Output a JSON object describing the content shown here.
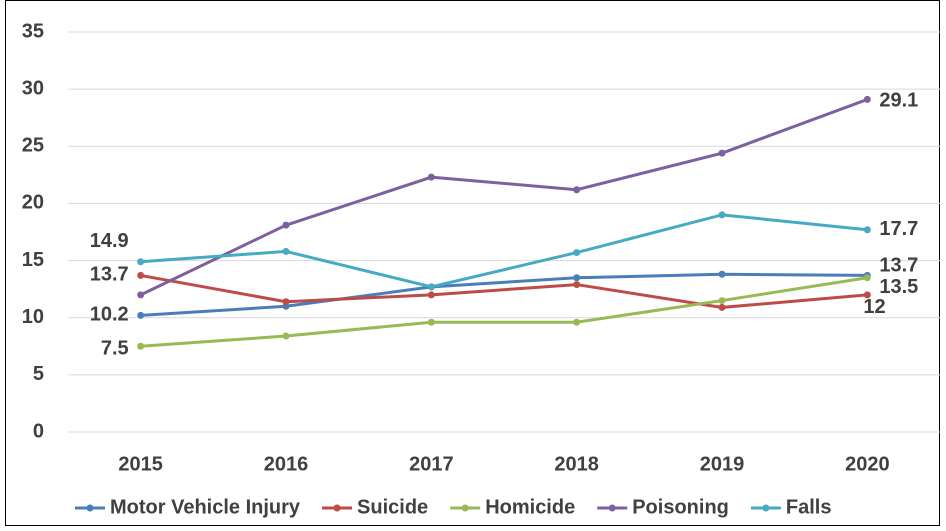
{
  "chart_data": {
    "type": "line",
    "categories": [
      "2015",
      "2016",
      "2017",
      "2018",
      "2019",
      "2020"
    ],
    "ylim": [
      0,
      35
    ],
    "yticks": [
      0,
      5,
      10,
      15,
      20,
      25,
      30,
      35
    ],
    "grid": true,
    "legend": "bottom",
    "series": [
      {
        "name": "Motor Vehicle Injury",
        "color": "#4a7ebb",
        "values": [
          10.2,
          11.0,
          12.7,
          13.5,
          13.8,
          13.7
        ],
        "value_labels": [
          "10.2",
          null,
          null,
          null,
          null,
          "13.7"
        ]
      },
      {
        "name": "Suicide",
        "color": "#be4b48",
        "values": [
          13.7,
          11.4,
          12.0,
          12.9,
          10.9,
          12
        ],
        "value_labels": [
          "13.7",
          null,
          null,
          null,
          null,
          "12"
        ]
      },
      {
        "name": "Homicide",
        "color": "#98b954",
        "values": [
          7.5,
          8.4,
          9.6,
          9.6,
          11.5,
          13.5
        ],
        "value_labels": [
          "7.5",
          null,
          null,
          null,
          null,
          "13.5"
        ]
      },
      {
        "name": "Poisoning",
        "color": "#7d60a0",
        "values": [
          12.0,
          18.1,
          22.3,
          21.2,
          24.4,
          29.1
        ],
        "value_labels": [
          null,
          null,
          null,
          null,
          null,
          "29.1"
        ]
      },
      {
        "name": "Falls",
        "color": "#46aac5",
        "values": [
          14.9,
          15.8,
          12.7,
          15.7,
          19.0,
          17.7
        ],
        "value_labels": [
          "14.9",
          null,
          null,
          null,
          null,
          "17.7"
        ]
      }
    ]
  }
}
